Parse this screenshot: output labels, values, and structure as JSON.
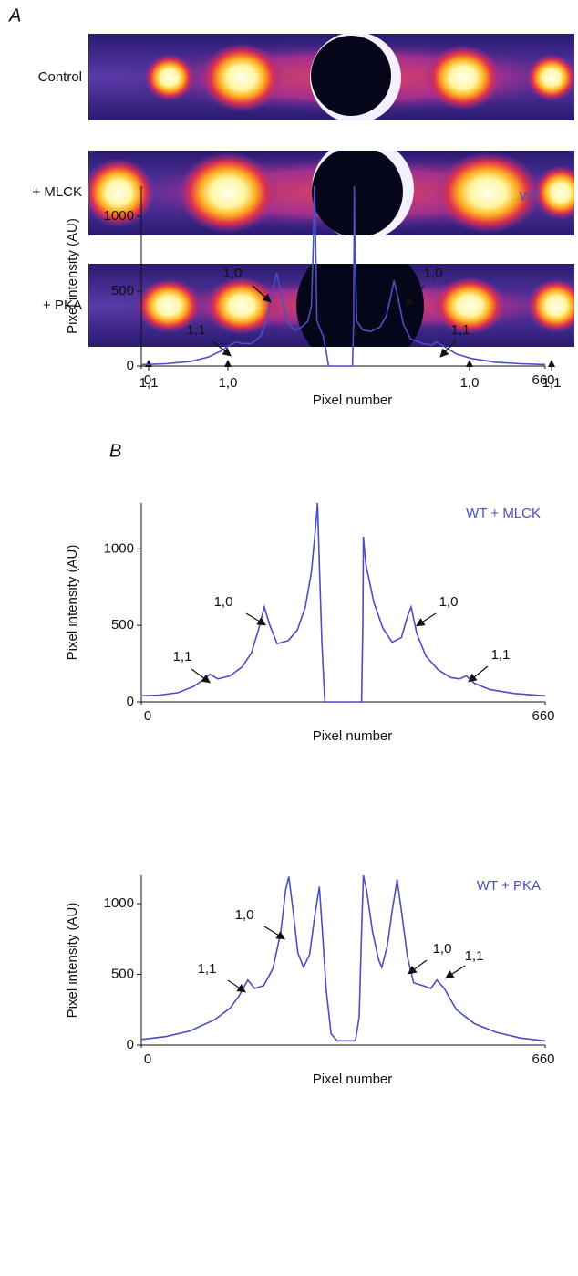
{
  "panel_a": {
    "label": "A",
    "images": [
      "Control",
      "+ MLCK",
      "+ PKA"
    ],
    "reflections": [
      "1,1",
      "1,0",
      "1,0",
      "1,1"
    ]
  },
  "panel_b": {
    "label": "B"
  },
  "chart_data": [
    {
      "type": "line",
      "xlabel": "Pixel number",
      "ylabel": "Pixel intensity (AU)",
      "xlim": [
        0,
        660
      ],
      "xticks": [
        0,
        660
      ],
      "ylim": [
        0,
        1200
      ],
      "yticks": [
        0,
        500,
        1000
      ],
      "annotations": [
        "1,1",
        "1,0",
        "1,0",
        "1,1"
      ],
      "x": [
        0,
        40,
        80,
        110,
        130,
        145,
        154,
        165,
        180,
        195,
        205,
        213,
        221,
        228,
        238,
        250,
        262,
        272,
        278,
        281,
        283,
        285,
        287,
        292,
        297,
        302,
        306,
        345,
        347,
        348,
        349,
        352,
        362,
        375,
        390,
        400,
        407,
        413,
        420,
        428,
        440,
        460,
        475,
        482,
        495,
        515,
        540,
        580,
        620,
        660
      ],
      "series": [
        {
          "name": "WT",
          "color": "#4b4fc0",
          "values": [
            10,
            15,
            30,
            60,
            100,
            140,
            160,
            150,
            150,
            200,
            300,
            480,
            620,
            500,
            300,
            240,
            260,
            300,
            400,
            800,
            1200,
            800,
            300,
            250,
            200,
            100,
            0,
            0,
            300,
            1200,
            800,
            300,
            240,
            230,
            260,
            330,
            450,
            570,
            450,
            280,
            180,
            150,
            140,
            160,
            130,
            80,
            50,
            25,
            15,
            10
          ]
        }
      ]
    },
    {
      "type": "line",
      "xlabel": "Pixel number",
      "ylabel": "Pixel intensity (AU)",
      "xlim": [
        0,
        660
      ],
      "xticks": [
        0,
        660
      ],
      "ylim": [
        0,
        1300
      ],
      "yticks": [
        0,
        500,
        1000
      ],
      "annotations": [
        "1,1",
        "1,0",
        "1,0",
        "1,1"
      ],
      "x": [
        0,
        30,
        60,
        85,
        100,
        112,
        125,
        145,
        165,
        180,
        192,
        201,
        210,
        222,
        240,
        255,
        268,
        278,
        285,
        288,
        291,
        295,
        298,
        300,
        360,
        362,
        363,
        367,
        380,
        395,
        410,
        425,
        435,
        441,
        450,
        465,
        485,
        505,
        520,
        531,
        545,
        570,
        610,
        660
      ],
      "series": [
        {
          "name": "WT + MLCK",
          "color": "#4b4fc0",
          "values": [
            40,
            45,
            60,
            100,
            140,
            180,
            150,
            170,
            230,
            320,
            480,
            620,
            500,
            380,
            400,
            470,
            620,
            850,
            1150,
            1300,
            900,
            400,
            150,
            0,
            0,
            500,
            1080,
            900,
            650,
            480,
            390,
            420,
            560,
            620,
            450,
            300,
            210,
            160,
            150,
            170,
            120,
            80,
            55,
            40
          ]
        }
      ]
    },
    {
      "type": "line",
      "xlabel": "Pixel number",
      "ylabel": "Pixel intensity (AU)",
      "xlim": [
        0,
        660
      ],
      "xticks": [
        0,
        660
      ],
      "ylim": [
        0,
        1200
      ],
      "yticks": [
        0,
        500,
        1000
      ],
      "annotations": [
        "1,1",
        "1,0",
        "1,0",
        "1,1"
      ],
      "x": [
        0,
        40,
        80,
        120,
        145,
        160,
        174,
        185,
        200,
        215,
        228,
        236,
        241,
        248,
        256,
        265,
        275,
        283,
        291,
        296,
        302,
        310,
        320,
        350,
        356,
        360,
        363,
        368,
        378,
        388,
        393,
        402,
        410,
        418,
        425,
        435,
        445,
        460,
        473,
        483,
        495,
        515,
        545,
        580,
        620,
        660
      ],
      "series": [
        {
          "name": "WT + PKA",
          "color": "#4b4fc0",
          "values": [
            40,
            60,
            100,
            180,
            260,
            350,
            460,
            400,
            420,
            540,
            800,
            1100,
            1190,
            950,
            650,
            550,
            640,
            900,
            1120,
            800,
            400,
            80,
            30,
            30,
            200,
            800,
            1200,
            1100,
            800,
            600,
            550,
            700,
            950,
            1170,
            950,
            620,
            440,
            420,
            400,
            460,
            400,
            250,
            150,
            90,
            50,
            30
          ]
        }
      ]
    }
  ]
}
